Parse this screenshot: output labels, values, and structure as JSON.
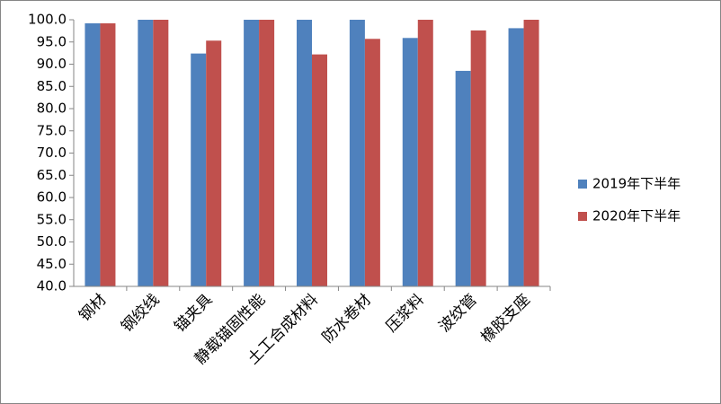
{
  "chart_data": {
    "type": "bar",
    "categories": [
      "钢材",
      "钢绞线",
      "锚夹具",
      "静载锚固性能",
      "土工合成材料",
      "防水卷材",
      "压浆料",
      "波纹管",
      "橡胶支座"
    ],
    "series": [
      {
        "name": "2019年下半年",
        "color": "#4f81bd",
        "values": [
          99.2,
          100,
          92.4,
          100,
          100,
          100,
          95.9,
          88.5,
          98.1
        ]
      },
      {
        "name": "2020年下半年",
        "color": "#c0504d",
        "values": [
          99.2,
          100,
          95.3,
          100,
          92.2,
          95.7,
          100,
          97.6,
          100
        ]
      }
    ],
    "ylim": [
      40,
      100
    ],
    "yticks": [
      {
        "value": 40,
        "label": "40.0"
      },
      {
        "value": 45,
        "label": "45.0"
      },
      {
        "value": 50,
        "label": "50.0"
      },
      {
        "value": 55,
        "label": "55.0"
      },
      {
        "value": 60,
        "label": "60.0"
      },
      {
        "value": 65,
        "label": "65.0"
      },
      {
        "value": 70,
        "label": "70.0"
      },
      {
        "value": 75,
        "label": "75.0"
      },
      {
        "value": 80,
        "label": "80.0"
      },
      {
        "value": 85,
        "label": "85.0"
      },
      {
        "value": 90,
        "label": "90.0"
      },
      {
        "value": 95,
        "label": "95.0"
      },
      {
        "value": 100,
        "label": "100.0"
      }
    ],
    "legend": "right"
  }
}
